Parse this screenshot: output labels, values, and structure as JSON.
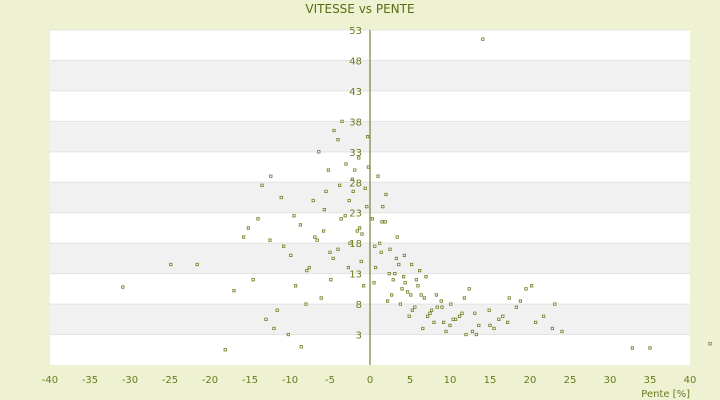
{
  "chart_data": {
    "type": "scatter",
    "title": "VITESSE vs PENTE",
    "xlabel": "Pente [%]",
    "ylabel": "",
    "xlim": [
      -40,
      40
    ],
    "ylim": [
      -2,
      53
    ],
    "x_ticks": [
      "-40",
      "-35",
      "-30",
      "-25",
      "-20",
      "-15",
      "-10",
      "-5",
      "0",
      "5",
      "10",
      "15",
      "20",
      "25",
      "30",
      "35",
      "40"
    ],
    "y_ticks": [
      "3",
      "8",
      "13",
      "18",
      "23",
      "28",
      "33",
      "38",
      "43",
      "48",
      "53"
    ],
    "grid": true,
    "legend": "none",
    "colors": {
      "background": "#eef2d2",
      "plot_band_light": "#ffffff",
      "plot_band_dark": "#f1f1f1",
      "point": "#6b7a1e",
      "axis_text": "#6b7a1e"
    },
    "series": [
      {
        "x": [
          14.1,
          42.5,
          32.8,
          35.0,
          -18.1,
          -30.9,
          -24.9,
          -21.6,
          -17.0,
          -15.2,
          -13.5,
          -12.4,
          -10.2,
          -8.6,
          -7.1,
          -6.4,
          -5.8,
          -5.2,
          -4.5,
          -4.0,
          -3.5,
          -3.0,
          -2.6,
          -2.1,
          -1.6,
          -1.1,
          -0.6,
          -0.2,
          0.3,
          0.7,
          1.2,
          1.6,
          2.0,
          2.5,
          2.9,
          3.4,
          3.8,
          4.3,
          4.7,
          5.2,
          5.6,
          6.2,
          6.8,
          7.5,
          8.3,
          9.2,
          10.1,
          11.2,
          12.4,
          13.6,
          14.9,
          16.1,
          17.4,
          18.8,
          20.2,
          21.7,
          23.1,
          24.0,
          19.5,
          17.2,
          15.5,
          13.1,
          12.0,
          10.7,
          9.5,
          8.4,
          7.2,
          6.0,
          5.1,
          4.2,
          3.3,
          2.4,
          1.5,
          0.6,
          -0.4,
          -1.3,
          -2.2,
          -3.1,
          -4.0,
          -4.9,
          -5.7,
          -6.6,
          -7.6,
          -8.7,
          -9.9,
          -11.1,
          -12.5,
          -14.0,
          -15.8,
          -13.0,
          -11.6,
          -9.3,
          -7.9,
          -6.1,
          -5.0,
          -3.8,
          -2.7,
          -1.9,
          -1.0,
          -0.3,
          0.5,
          1.4,
          2.2,
          3.1,
          4.0,
          4.9,
          5.8,
          6.6,
          7.7,
          8.9,
          10.4,
          11.8,
          13.3,
          15.0,
          16.6,
          18.3,
          20.7,
          22.8,
          -2.5,
          -3.6,
          -4.6,
          -5.5,
          -1.4,
          -0.8,
          1.0,
          1.9,
          2.7,
          3.6,
          4.4,
          5.3,
          6.4,
          7.0,
          8.0,
          9.0,
          10.0,
          11.5,
          12.8,
          -6.9,
          -8.0,
          -9.5,
          -10.8,
          -12.0,
          -14.6
        ],
        "y": [
          51.5,
          1.5,
          0.8,
          0.8,
          0.5,
          10.8,
          14.5,
          14.5,
          10.2,
          20.5,
          27.5,
          29.0,
          3.0,
          1.0,
          25.0,
          33.0,
          20.0,
          30.0,
          36.5,
          35.0,
          38.0,
          31.0,
          25.0,
          26.5,
          20.0,
          15.0,
          27.0,
          30.5,
          22.0,
          14.0,
          18.0,
          24.0,
          26.0,
          17.0,
          12.0,
          19.0,
          8.0,
          16.0,
          10.0,
          14.5,
          7.5,
          13.5,
          9.0,
          6.5,
          9.5,
          5.0,
          8.0,
          6.0,
          10.5,
          4.5,
          7.0,
          5.5,
          9.0,
          8.5,
          11.0,
          6.0,
          8.0,
          3.5,
          10.5,
          5.0,
          4.0,
          6.5,
          3.0,
          5.5,
          3.5,
          7.5,
          6.0,
          11.0,
          9.5,
          12.5,
          15.5,
          13.0,
          21.5,
          17.5,
          24.0,
          20.5,
          28.5,
          22.5,
          17.0,
          12.0,
          23.5,
          18.5,
          14.0,
          21.0,
          16.0,
          25.5,
          18.5,
          22.0,
          19.0,
          5.5,
          7.0,
          11.0,
          13.5,
          9.0,
          16.5,
          27.5,
          14.0,
          30.0,
          19.5,
          35.5,
          11.5,
          16.5,
          8.5,
          13.0,
          10.5,
          6.0,
          12.0,
          4.0,
          7.0,
          8.5,
          5.5,
          9.0,
          3.0,
          4.5,
          6.0,
          7.5,
          5.0,
          4.0,
          18.0,
          22.0,
          15.5,
          26.5,
          32.0,
          11.0,
          29.0,
          21.5,
          9.5,
          14.5,
          11.5,
          7.0,
          9.5,
          12.5,
          5.0,
          7.5,
          4.5,
          6.5,
          3.5,
          19.0,
          8.0,
          22.5,
          17.5,
          4.0,
          12.0
        ]
      }
    ]
  }
}
